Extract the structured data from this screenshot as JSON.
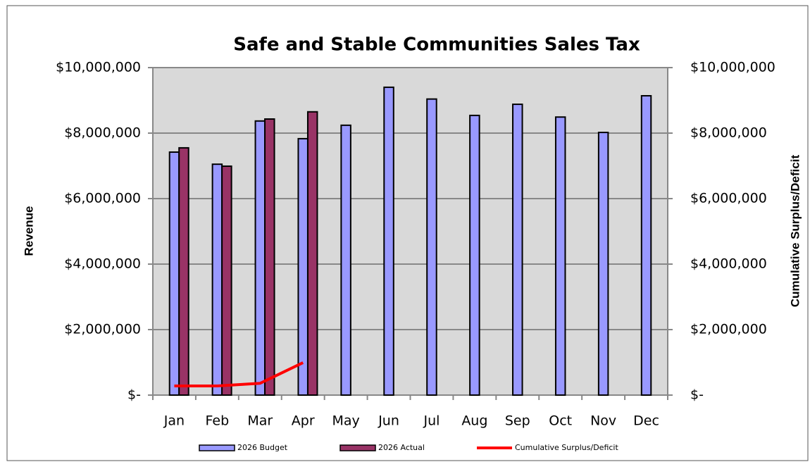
{
  "chart_data": {
    "type": "bar",
    "title": "Safe and Stable Communities Sales Tax",
    "y_label": "Revenue",
    "y2_label": "Cumulative Surplus/Deficit",
    "categories": [
      "Jan",
      "Feb",
      "Mar",
      "Apr",
      "May",
      "Jun",
      "Jul",
      "Aug",
      "Sep",
      "Oct",
      "Nov",
      "Dec"
    ],
    "series": [
      {
        "name": "2026 Budget",
        "type": "bar",
        "color": "#9999ff",
        "values": [
          7420000,
          7050000,
          8370000,
          7830000,
          8240000,
          9400000,
          9040000,
          8540000,
          8880000,
          8490000,
          8020000,
          9140000
        ]
      },
      {
        "name": "2026 Actual",
        "type": "bar",
        "color": "#993366",
        "values": [
          7550000,
          6990000,
          8430000,
          8650000,
          null,
          null,
          null,
          null,
          null,
          null,
          null,
          null
        ]
      },
      {
        "name": "Cumulative Surplus/Deficit",
        "type": "line",
        "axis": "y2",
        "color": "#ff0000",
        "values": [
          280000,
          280000,
          360000,
          990000,
          null,
          null,
          null,
          null,
          null,
          null,
          null,
          null
        ]
      }
    ],
    "ylim": [
      0,
      10000000
    ],
    "yticks": [
      {
        "value": 0,
        "label": "$-"
      },
      {
        "value": 2000000,
        "label": "$2,000,000"
      },
      {
        "value": 4000000,
        "label": "$4,000,000"
      },
      {
        "value": 6000000,
        "label": "$6,000,000"
      },
      {
        "value": 8000000,
        "label": "$8,000,000"
      },
      {
        "value": 10000000,
        "label": "$10,000,000"
      }
    ],
    "y2lim": [
      0,
      10000000
    ],
    "y2ticks": [
      {
        "value": 0,
        "label": "$-"
      },
      {
        "value": 2000000,
        "label": "$2,000,000"
      },
      {
        "value": 4000000,
        "label": "$4,000,000"
      },
      {
        "value": 6000000,
        "label": "$6,000,000"
      },
      {
        "value": 8000000,
        "label": "$8,000,000"
      },
      {
        "value": 10000000,
        "label": "$10,000,000"
      }
    ],
    "grid": true,
    "legend": "bottom",
    "plot_background": "#d9d9d9"
  }
}
